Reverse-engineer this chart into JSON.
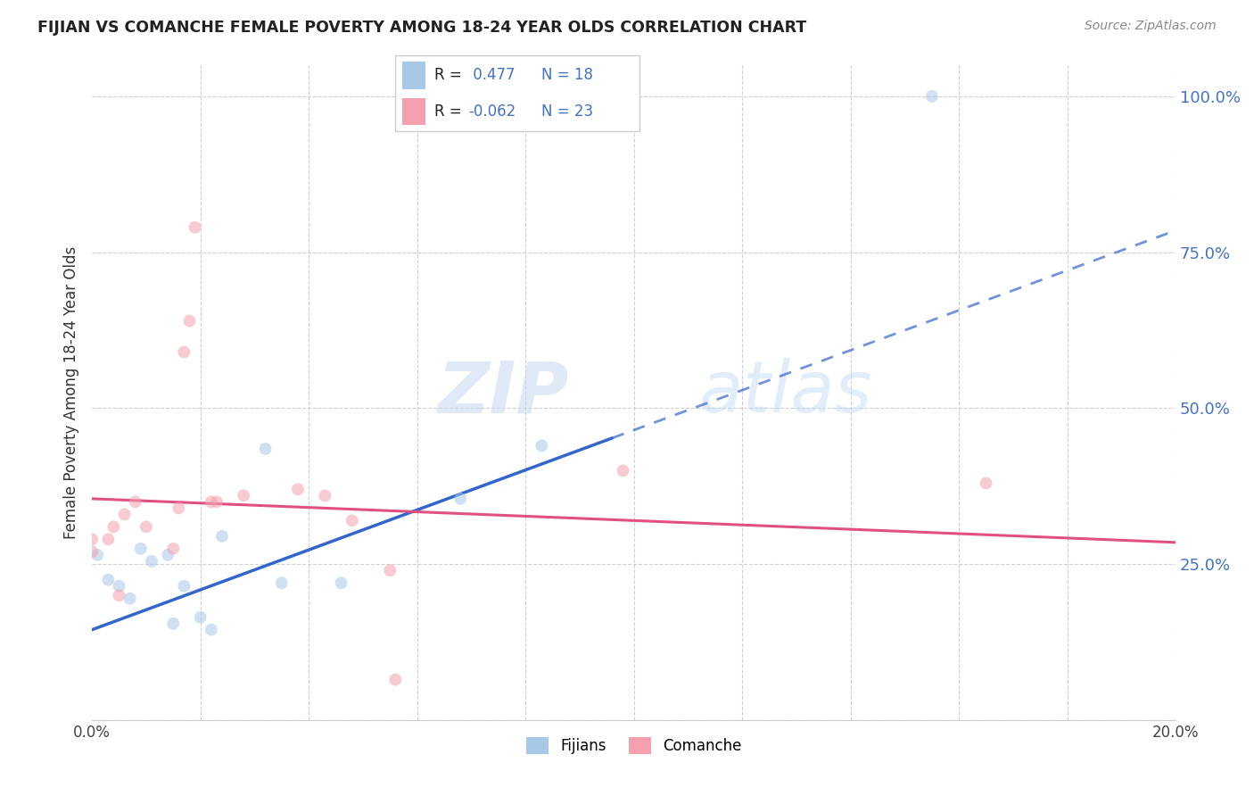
{
  "title": "FIJIAN VS COMANCHE FEMALE POVERTY AMONG 18-24 YEAR OLDS CORRELATION CHART",
  "source": "Source: ZipAtlas.com",
  "ylabel": "Female Poverty Among 18-24 Year Olds",
  "fijian_color": "#a8c8e8",
  "comanche_color": "#f4a0b0",
  "fijian_line_color": "#3366cc",
  "comanche_line_color": "#e05080",
  "fijian_R": 0.477,
  "fijian_N": 18,
  "comanche_R": -0.062,
  "comanche_N": 23,
  "xlim": [
    0.0,
    0.2
  ],
  "ylim": [
    0.0,
    1.05
  ],
  "fijian_x": [
    0.001,
    0.003,
    0.005,
    0.007,
    0.009,
    0.011,
    0.014,
    0.015,
    0.017,
    0.02,
    0.022,
    0.024,
    0.032,
    0.035,
    0.046,
    0.068,
    0.083,
    0.155
  ],
  "fijian_y": [
    0.265,
    0.225,
    0.215,
    0.195,
    0.275,
    0.255,
    0.265,
    0.155,
    0.215,
    0.165,
    0.145,
    0.295,
    0.435,
    0.22,
    0.22,
    0.355,
    0.44,
    1.0
  ],
  "comanche_x": [
    0.0,
    0.0,
    0.003,
    0.004,
    0.005,
    0.006,
    0.008,
    0.01,
    0.015,
    0.016,
    0.017,
    0.018,
    0.019,
    0.022,
    0.023,
    0.028,
    0.038,
    0.043,
    0.048,
    0.055,
    0.056,
    0.098,
    0.165
  ],
  "comanche_y": [
    0.27,
    0.29,
    0.29,
    0.31,
    0.2,
    0.33,
    0.35,
    0.31,
    0.275,
    0.34,
    0.59,
    0.64,
    0.79,
    0.35,
    0.35,
    0.36,
    0.37,
    0.36,
    0.32,
    0.24,
    0.065,
    0.4,
    0.38
  ],
  "watermark_zip": "ZIP",
  "watermark_atlas": "atlas",
  "background_color": "#ffffff",
  "grid_color": "#d0d0d0",
  "marker_size": 100,
  "marker_alpha": 0.55,
  "legend_color": "#4472c4"
}
